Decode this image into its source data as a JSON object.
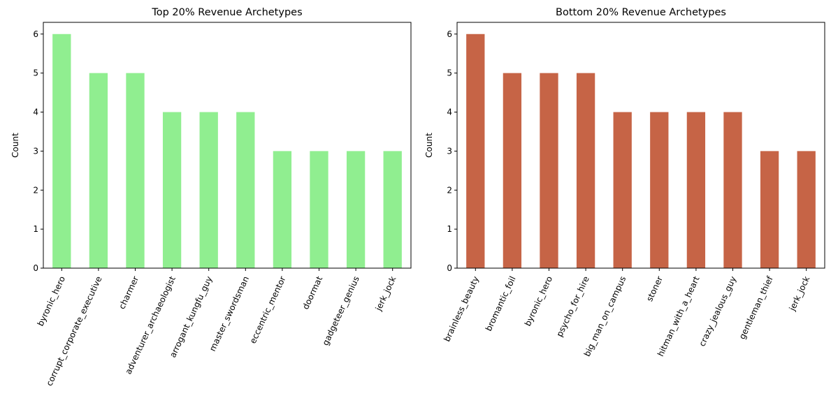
{
  "chart_data": [
    {
      "type": "bar",
      "title": "Top 20% Revenue Archetypes",
      "xlabel": "",
      "ylabel": "Count",
      "ylim": [
        0,
        6.3
      ],
      "yticks": [
        0,
        1,
        2,
        3,
        4,
        5,
        6
      ],
      "color": "#90ee90",
      "grid": false,
      "categories": [
        "byronic_hero",
        "corrupt_corporate_executive",
        "charmer",
        "adventurer_archaeologist",
        "arrogant_kungfu_guy",
        "master_swordsman",
        "eccentric_mentor",
        "doormat",
        "gadgeteer_genius",
        "jerk_jock"
      ],
      "values": [
        6,
        5,
        5,
        4,
        4,
        4,
        3,
        3,
        3,
        3
      ]
    },
    {
      "type": "bar",
      "title": "Bottom 20% Revenue Archetypes",
      "xlabel": "",
      "ylabel": "Count",
      "ylim": [
        0,
        6.3
      ],
      "yticks": [
        0,
        1,
        2,
        3,
        4,
        5,
        6
      ],
      "color": "#c66446",
      "grid": false,
      "categories": [
        "brainless_beauty",
        "bromantic_foil",
        "byronic_hero",
        "psycho_for_hire",
        "big_man_on_campus",
        "stoner",
        "hitman_with_a_heart",
        "crazy_jealous_guy",
        "gentleman_thief",
        "jerk_jock"
      ],
      "values": [
        6,
        5,
        5,
        5,
        4,
        4,
        4,
        4,
        3,
        3
      ]
    }
  ]
}
